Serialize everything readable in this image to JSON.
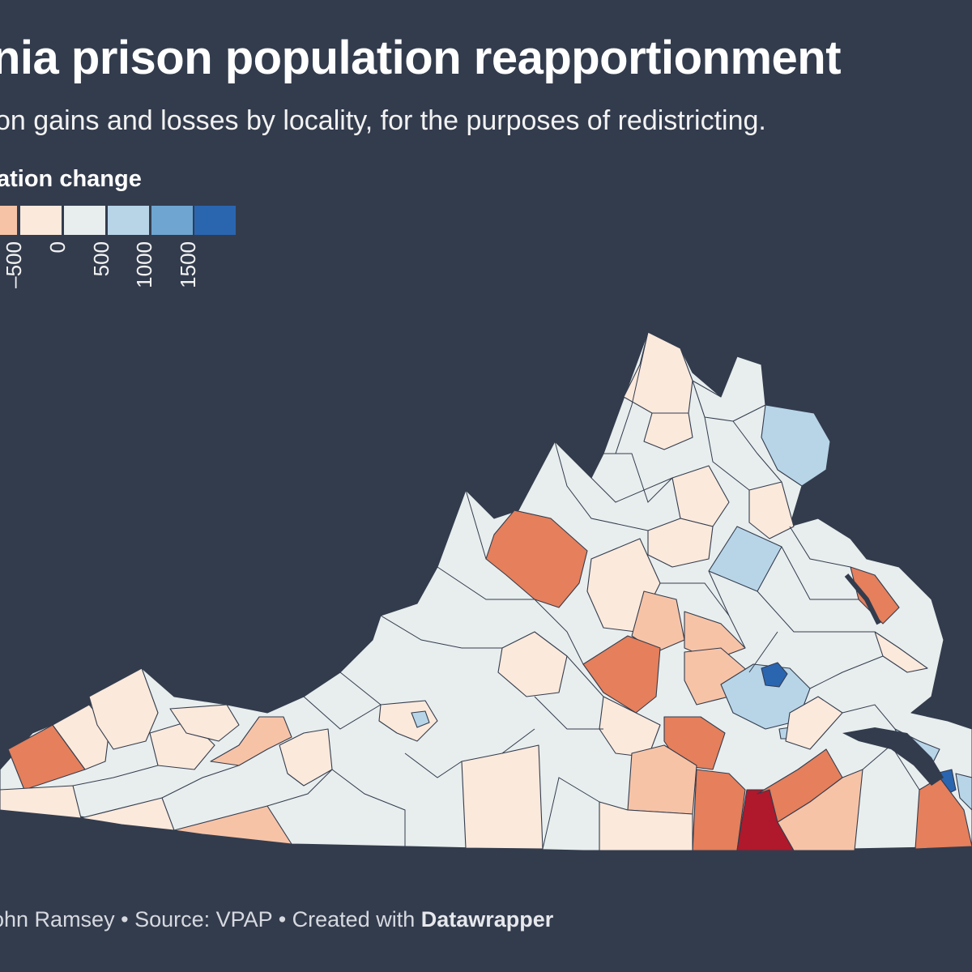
{
  "title": "nia prison population reapportionment",
  "subtitle": "on gains and losses by locality, for the purposes of redistricting.",
  "legend": {
    "title": "ation change",
    "ticks": [
      "–500",
      "0",
      "500",
      "1000",
      "1500"
    ],
    "colors": [
      "#f7c3a7",
      "#fbe9dc",
      "#e8eeee",
      "#b8d5e8",
      "#6ea6d1",
      "#2a65b0"
    ]
  },
  "footer": {
    "credit": "ohn Ramsey",
    "source": "Source: VPAP",
    "created": "Created with",
    "tool": "Datawrapper"
  },
  "map_colors": {
    "neutral": "#e8eeee",
    "slight_loss": "#fbe9dc",
    "loss": "#f7c3a7",
    "big_loss": "#e57f5c",
    "largest_loss": "#b0182b",
    "gain": "#b8d5e8",
    "big_gain": "#2a65b0",
    "water": "#333c4d"
  }
}
